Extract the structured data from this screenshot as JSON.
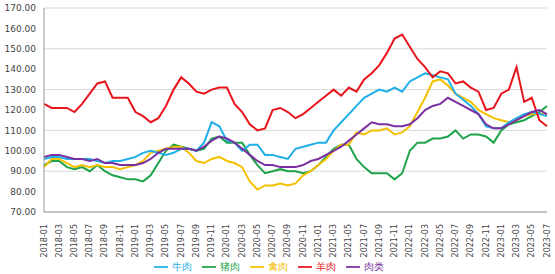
{
  "chart_data": {
    "type": "line",
    "categories": [
      "2018-01",
      null,
      "2018-03",
      null,
      "2018-05",
      null,
      "2018-07",
      null,
      "2018-09",
      null,
      "2018-11",
      null,
      "2019-01",
      null,
      "2019-03",
      null,
      "2019-05",
      null,
      "2019-07",
      null,
      "2019-09",
      null,
      "2019-11",
      null,
      "2020-01",
      null,
      "2020-03",
      null,
      "2020-05",
      null,
      "2020-07",
      null,
      "2020-09",
      null,
      "2020-11",
      null,
      "2021-01",
      null,
      "2021-03",
      null,
      "2021-05",
      null,
      "2021-07",
      null,
      "2021-09",
      null,
      "2021-11",
      null,
      "2022-01",
      null,
      "2022-03",
      null,
      "2022-05",
      null,
      "2022-07",
      null,
      "2022-09",
      null,
      "2022-11",
      null,
      "2023-01",
      null,
      "2023-03",
      null,
      "2023-05",
      null,
      "2023-07"
    ],
    "series": [
      {
        "name": "猪肉",
        "color": "#1fa34a",
        "values": [
          93,
          95,
          95,
          92,
          91,
          92,
          90,
          93,
          90,
          88,
          87,
          86,
          86,
          85,
          88,
          94,
          100,
          103,
          102,
          101,
          100,
          101,
          106,
          107,
          104,
          104,
          104,
          98,
          93,
          89,
          90,
          91,
          90,
          90,
          89,
          90,
          93,
          97,
          101,
          103,
          103,
          96,
          92,
          89,
          89,
          89,
          86,
          89,
          100,
          104,
          104,
          106,
          106,
          107,
          110,
          106,
          108,
          108,
          107,
          104,
          110,
          113,
          114,
          115,
          117,
          119,
          122
        ]
      },
      {
        "name": "禽肉",
        "color": "#f5c000",
        "values": [
          92,
          96,
          96,
          94,
          92,
          93,
          92,
          93,
          92,
          92,
          91,
          92,
          93,
          95,
          99,
          100,
          101,
          102,
          102,
          99,
          95,
          94,
          96,
          97,
          95,
          94,
          92,
          85,
          81,
          83,
          83,
          84,
          83,
          84,
          88,
          90,
          93,
          96,
          100,
          103,
          103,
          109,
          108,
          110,
          110,
          111,
          108,
          109,
          112,
          119,
          126,
          134,
          135,
          132,
          128,
          126,
          124,
          120,
          118,
          116,
          115,
          114,
          115,
          117,
          118,
          118,
          118
        ]
      },
      {
        "name": "牛肉",
        "color": "#1fb0e8",
        "values": [
          96,
          97,
          97,
          96,
          96,
          96,
          96,
          95,
          94,
          95,
          95,
          96,
          97,
          99,
          100,
          99,
          98,
          99,
          101,
          101,
          100,
          104,
          114,
          112,
          105,
          104,
          100,
          103,
          103,
          98,
          98,
          97,
          96,
          101,
          102,
          103,
          104,
          104,
          110,
          114,
          118,
          122,
          126,
          128,
          130,
          129,
          131,
          129,
          134,
          136,
          138,
          137,
          136,
          135,
          128,
          125,
          122,
          118,
          112,
          111,
          111,
          114,
          116,
          118,
          119,
          118,
          117
        ]
      },
      {
        "name": "羊肉",
        "color": "#e8141c",
        "values": [
          123,
          121,
          121,
          121,
          119,
          123,
          128,
          133,
          134,
          126,
          126,
          126,
          119,
          117,
          114,
          116,
          122,
          130,
          136,
          133,
          129,
          128,
          130,
          131,
          131,
          123,
          119,
          113,
          110,
          111,
          120,
          121,
          119,
          116,
          118,
          121,
          124,
          127,
          130,
          127,
          131,
          129,
          135,
          138,
          142,
          148,
          155,
          157,
          151,
          145,
          141,
          136,
          139,
          138,
          133,
          134,
          131,
          129,
          120,
          121,
          128,
          130,
          141,
          124,
          126,
          115,
          112
        ]
      },
      {
        "name": "肉类",
        "color": "#7a30a0",
        "values": [
          97,
          98,
          98,
          97,
          96,
          96,
          95,
          96,
          94,
          94,
          93,
          93,
          93,
          94,
          96,
          99,
          101,
          101,
          101,
          101,
          100,
          102,
          105,
          107,
          106,
          104,
          101,
          98,
          95,
          93,
          93,
          92,
          92,
          92,
          93,
          95,
          96,
          98,
          100,
          102,
          105,
          108,
          111,
          114,
          113,
          113,
          112,
          112,
          113,
          116,
          120,
          122,
          123,
          126,
          124,
          122,
          120,
          118,
          113,
          111,
          111,
          113,
          115,
          117,
          119,
          120,
          118
        ]
      }
    ],
    "ylim": [
      70,
      170
    ],
    "yticks": [
      {
        "value": 70,
        "label": "70.00"
      },
      {
        "value": 80,
        "label": "80.00"
      },
      {
        "value": 90,
        "label": "90.00"
      },
      {
        "value": 100,
        "label": "100.00"
      },
      {
        "value": 110,
        "label": "110.00"
      },
      {
        "value": 120,
        "label": "120.00"
      },
      {
        "value": 130,
        "label": "130.00"
      },
      {
        "value": 140,
        "label": "140.00"
      },
      {
        "value": 150,
        "label": "150.00"
      },
      {
        "value": 160,
        "label": "160.00"
      },
      {
        "value": 170,
        "label": "170.00"
      }
    ],
    "grid": true,
    "legend": "bottom"
  }
}
